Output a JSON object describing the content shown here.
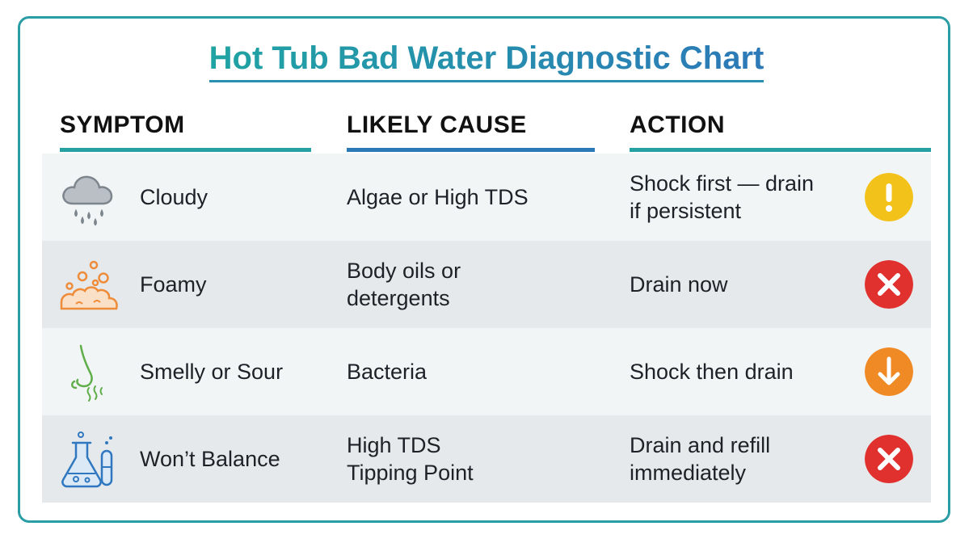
{
  "title": "Hot Tub Bad Water Diagnostic Chart",
  "columns": {
    "symptom": "SYMPTOM",
    "cause": "LIKELY CAUSE",
    "action": "ACTION"
  },
  "colors": {
    "teal": "#25a0a3",
    "blue": "#2c79b8",
    "warning_yellow": "#f2c21b",
    "danger_red": "#e0312f",
    "caution_orange": "#f08a24"
  },
  "rows": [
    {
      "symptom": "Cloudy",
      "symptom_icon": "rain-cloud-icon",
      "cause": [
        "Algae or High TDS"
      ],
      "action": [
        "Shock first — drain",
        "if persistent"
      ],
      "status_icon": "exclamation-icon"
    },
    {
      "symptom": "Foamy",
      "symptom_icon": "foam-bubbles-icon",
      "cause": [
        "Body oils or",
        "detergents"
      ],
      "action": [
        "Drain now"
      ],
      "status_icon": "x-icon"
    },
    {
      "symptom": "Smelly or Sour",
      "symptom_icon": "nose-smell-icon",
      "cause": [
        "Bacteria"
      ],
      "action": [
        "Shock then drain"
      ],
      "status_icon": "down-arrow-icon"
    },
    {
      "symptom": "Won’t Balance",
      "symptom_icon": "lab-flask-icon",
      "cause": [
        "High TDS",
        "Tipping Point"
      ],
      "action": [
        "Drain and refill",
        "immediately"
      ],
      "status_icon": "x-icon"
    }
  ]
}
